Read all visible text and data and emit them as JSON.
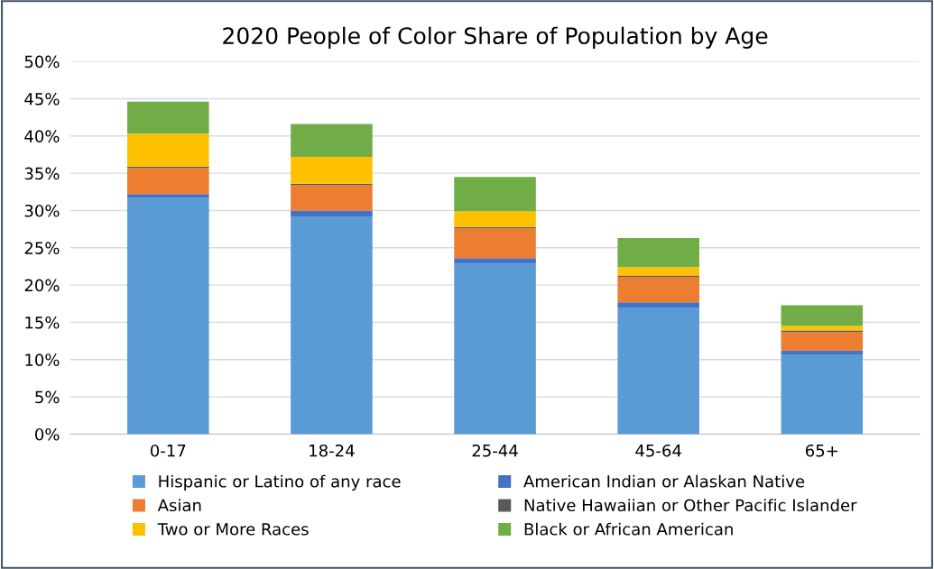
{
  "chart_data": {
    "type": "bar",
    "title": "2020 People of Color Share of Population by Age",
    "stacked": true,
    "grid": "y",
    "legend": "bottom",
    "categories": [
      "0-17",
      "18-24",
      "25-44",
      "45-64",
      "65+"
    ],
    "series": [
      {
        "name": "Hispanic or Latino of any race",
        "color": "#5b9bd5",
        "values": [
          31.7,
          29.2,
          22.9,
          17.0,
          10.7
        ]
      },
      {
        "name": "American Indian or Alaskan Native",
        "color": "#4472c4",
        "values": [
          0.5,
          0.8,
          0.7,
          0.7,
          0.5
        ]
      },
      {
        "name": "Asian",
        "color": "#ed7d31",
        "values": [
          3.5,
          3.4,
          4.0,
          3.4,
          2.5
        ]
      },
      {
        "name": "Native Hawaiian or Other Pacific Islander",
        "color": "#595959",
        "values": [
          0.2,
          0.2,
          0.2,
          0.2,
          0.2
        ]
      },
      {
        "name": "Two or More Races",
        "color": "#ffc000",
        "values": [
          4.4,
          3.6,
          2.1,
          1.1,
          0.6
        ]
      },
      {
        "name": "Black or African American",
        "color": "#70ad47",
        "values": [
          4.3,
          4.4,
          4.6,
          3.9,
          2.8
        ]
      }
    ],
    "ylim": [
      0,
      50
    ],
    "yticks": [
      {
        "value": 0,
        "label": "0%"
      },
      {
        "value": 5,
        "label": "5%"
      },
      {
        "value": 10,
        "label": "10%"
      },
      {
        "value": 15,
        "label": "15%"
      },
      {
        "value": 20,
        "label": "20%"
      },
      {
        "value": 25,
        "label": "25%"
      },
      {
        "value": 30,
        "label": "30%"
      },
      {
        "value": 35,
        "label": "35%"
      },
      {
        "value": 40,
        "label": "40%"
      },
      {
        "value": 45,
        "label": "45%"
      },
      {
        "value": 50,
        "label": "50%"
      }
    ]
  }
}
